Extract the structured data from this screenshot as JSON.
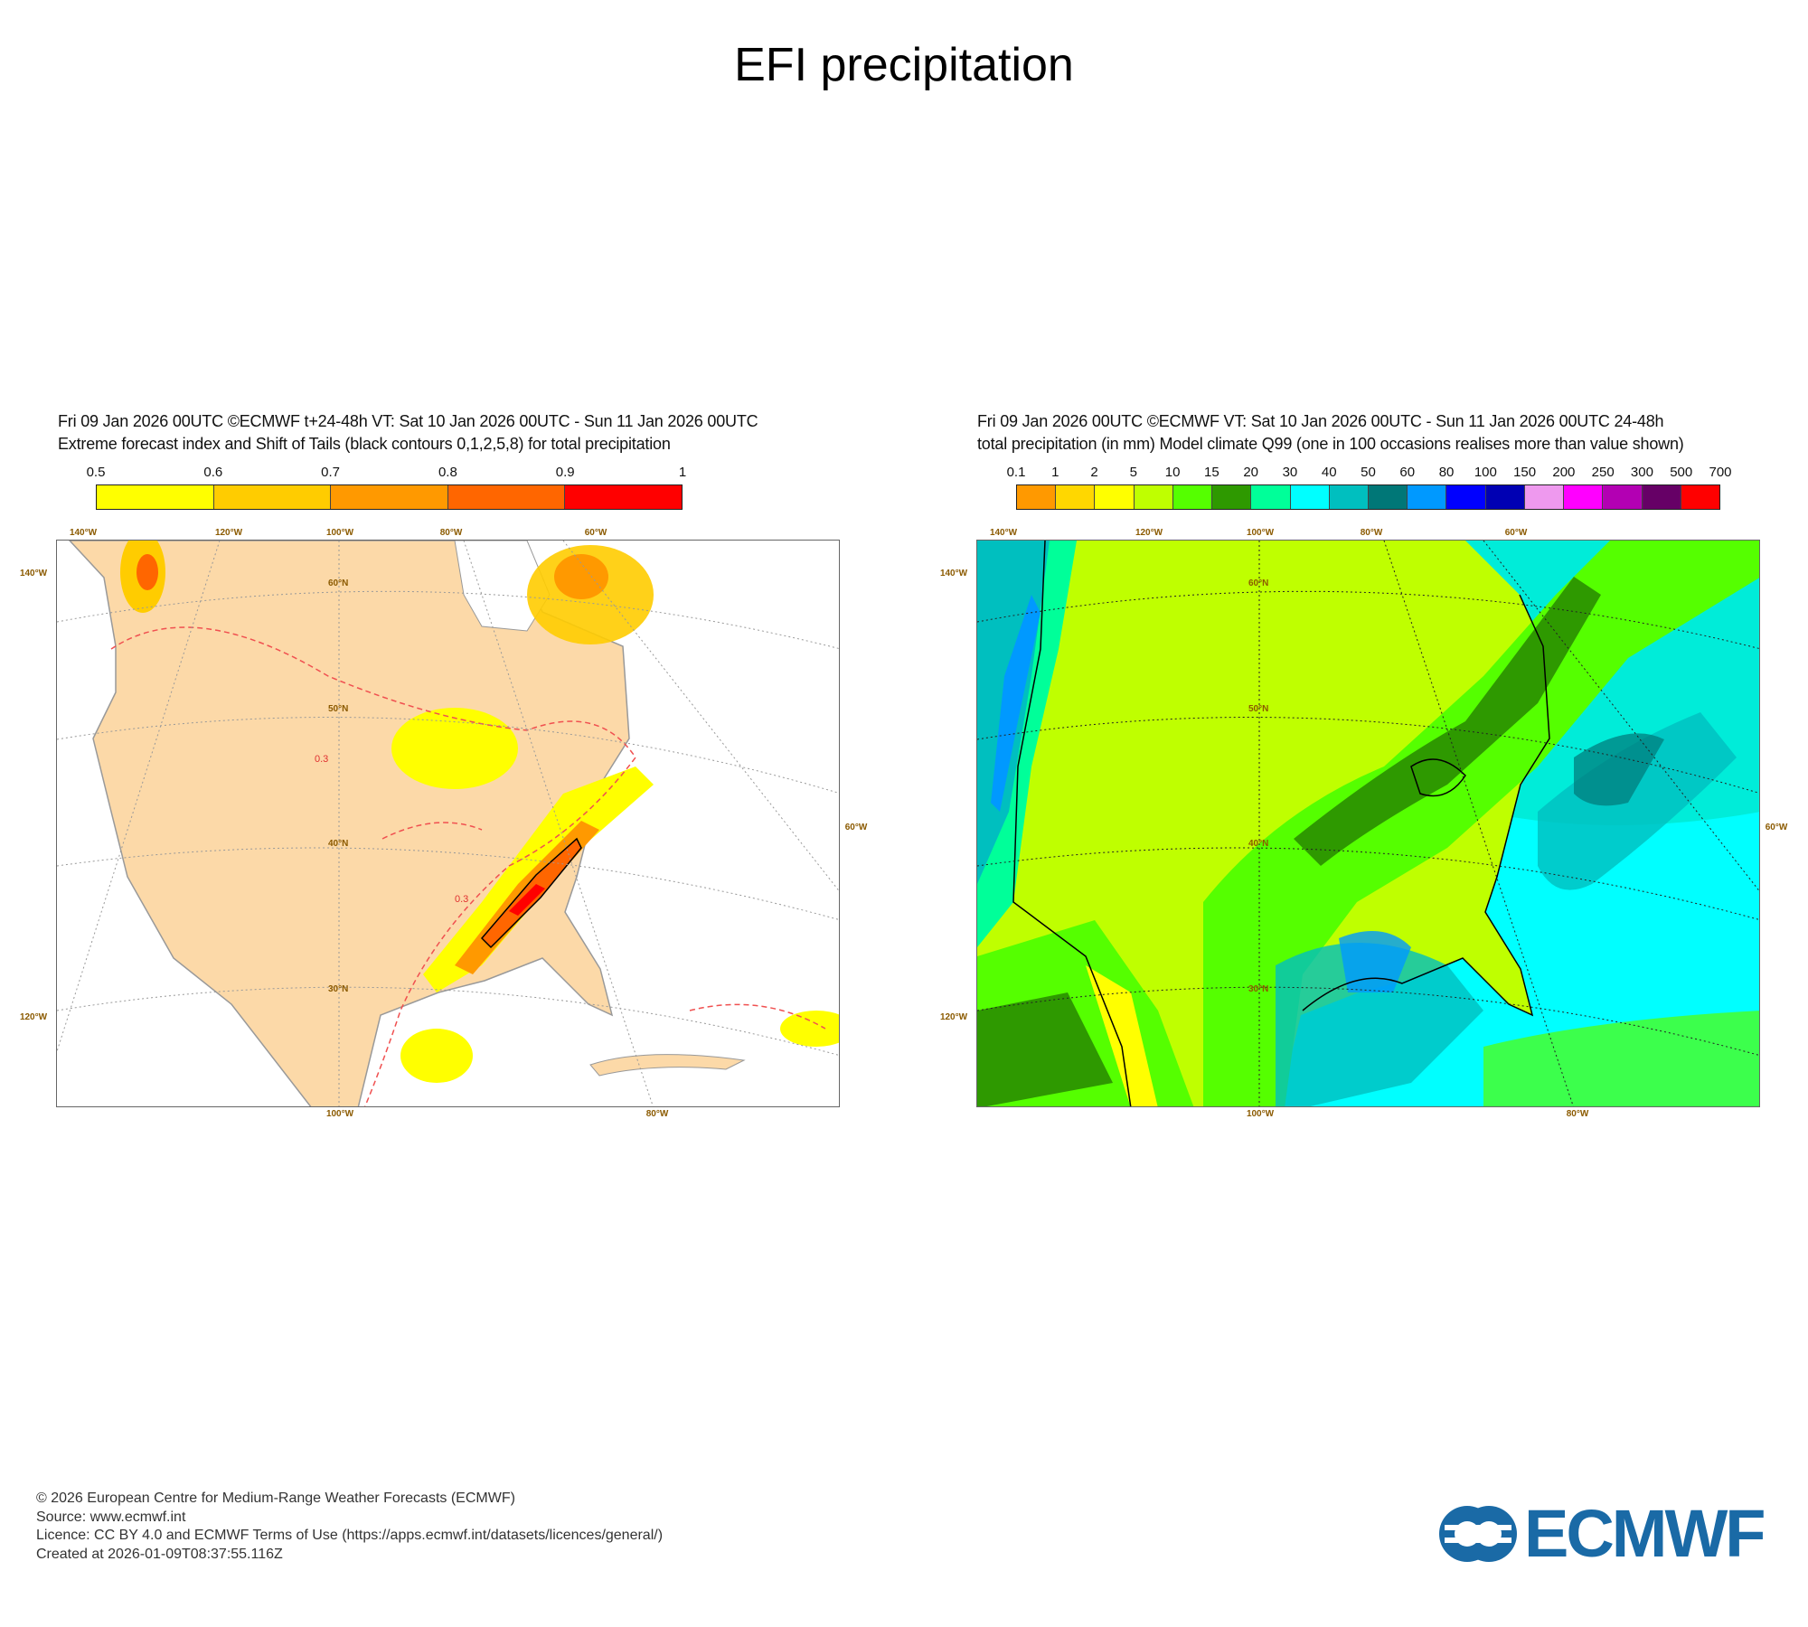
{
  "title": "EFI precipitation",
  "panels": [
    {
      "header_line1": "Fri 09 Jan 2026 00UTC ©ECMWF t+24-48h  VT: Sat 10 Jan 2026 00UTC - Sun 11 Jan 2026 00UTC",
      "header_line2": "Extreme forecast index and Shift of Tails (black contours 0,1,2,5,8) for total precipitation",
      "colorbar": {
        "labels": [
          "0.5",
          "0.6",
          "0.7",
          "0.8",
          "0.9",
          "1"
        ],
        "colors": [
          "#ffff00",
          "#ffcc00",
          "#ff9900",
          "#ff6600",
          "#ff0000"
        ]
      },
      "contour_label": "0.3"
    },
    {
      "header_line1": "Fri 09 Jan 2026 00UTC ©ECMWF VT: Sat 10 Jan 2026 00UTC - Sun 11 Jan 2026 00UTC   24-48h",
      "header_line2": "total precipitation (in mm)  Model climate Q99 (one in 100 occasions realises more than value shown)",
      "colorbar": {
        "labels": [
          "0.1",
          "1",
          "2",
          "5",
          "10",
          "15",
          "20",
          "30",
          "40",
          "50",
          "60",
          "80",
          "100",
          "150",
          "200",
          "250",
          "300",
          "500",
          "700"
        ],
        "colors": [
          "#ff9900",
          "#ffd700",
          "#ffff00",
          "#bfff00",
          "#55ff00",
          "#2e9900",
          "#00ff99",
          "#00ffff",
          "#00bfbf",
          "#007777",
          "#0099ff",
          "#0000ff",
          "#0000b3",
          "#ee99ee",
          "#ff00ff",
          "#b300b3",
          "#660066",
          "#ff0000"
        ]
      }
    }
  ],
  "axes": {
    "top": [
      "140°W",
      "120°W",
      "100°W",
      "80°W",
      "60°W"
    ],
    "left": [
      "140°W",
      "120°W"
    ],
    "right": [
      "60°W"
    ],
    "bottom": [
      "100°W",
      "80°W"
    ],
    "lat": [
      "60°N",
      "50°N",
      "40°N",
      "30°N"
    ]
  },
  "chart_data": [
    {
      "type": "heatmap",
      "title": "Extreme forecast index and Shift of Tails (black contours 0,1,2,5,8) for total precipitation",
      "colorbar_bounds": [
        0.5,
        0.6,
        0.7,
        0.8,
        0.9,
        1
      ],
      "region": "North America",
      "highlights": "EFI 0.8–0.9+ along the southern Appalachians; 0.5–0.7 over Great Lakes and Quebec"
    },
    {
      "type": "heatmap",
      "title": "total precipitation (in mm) Model climate Q99",
      "colorbar_bounds": [
        0.1,
        1,
        2,
        5,
        10,
        15,
        20,
        30,
        40,
        50,
        60,
        80,
        100,
        150,
        200,
        250,
        300,
        500,
        700
      ],
      "region": "North America"
    }
  ],
  "footer": {
    "line1": "© 2026 European Centre for Medium-Range Weather Forecasts (ECMWF)",
    "line2": "Source: www.ecmwf.int",
    "line3": "Licence: CC BY 4.0 and ECMWF Terms of Use (https://apps.ecmwf.int/datasets/licences/general/)",
    "line4": "Created at 2026-01-09T08:37:55.116Z"
  },
  "logo": "ECMWF"
}
